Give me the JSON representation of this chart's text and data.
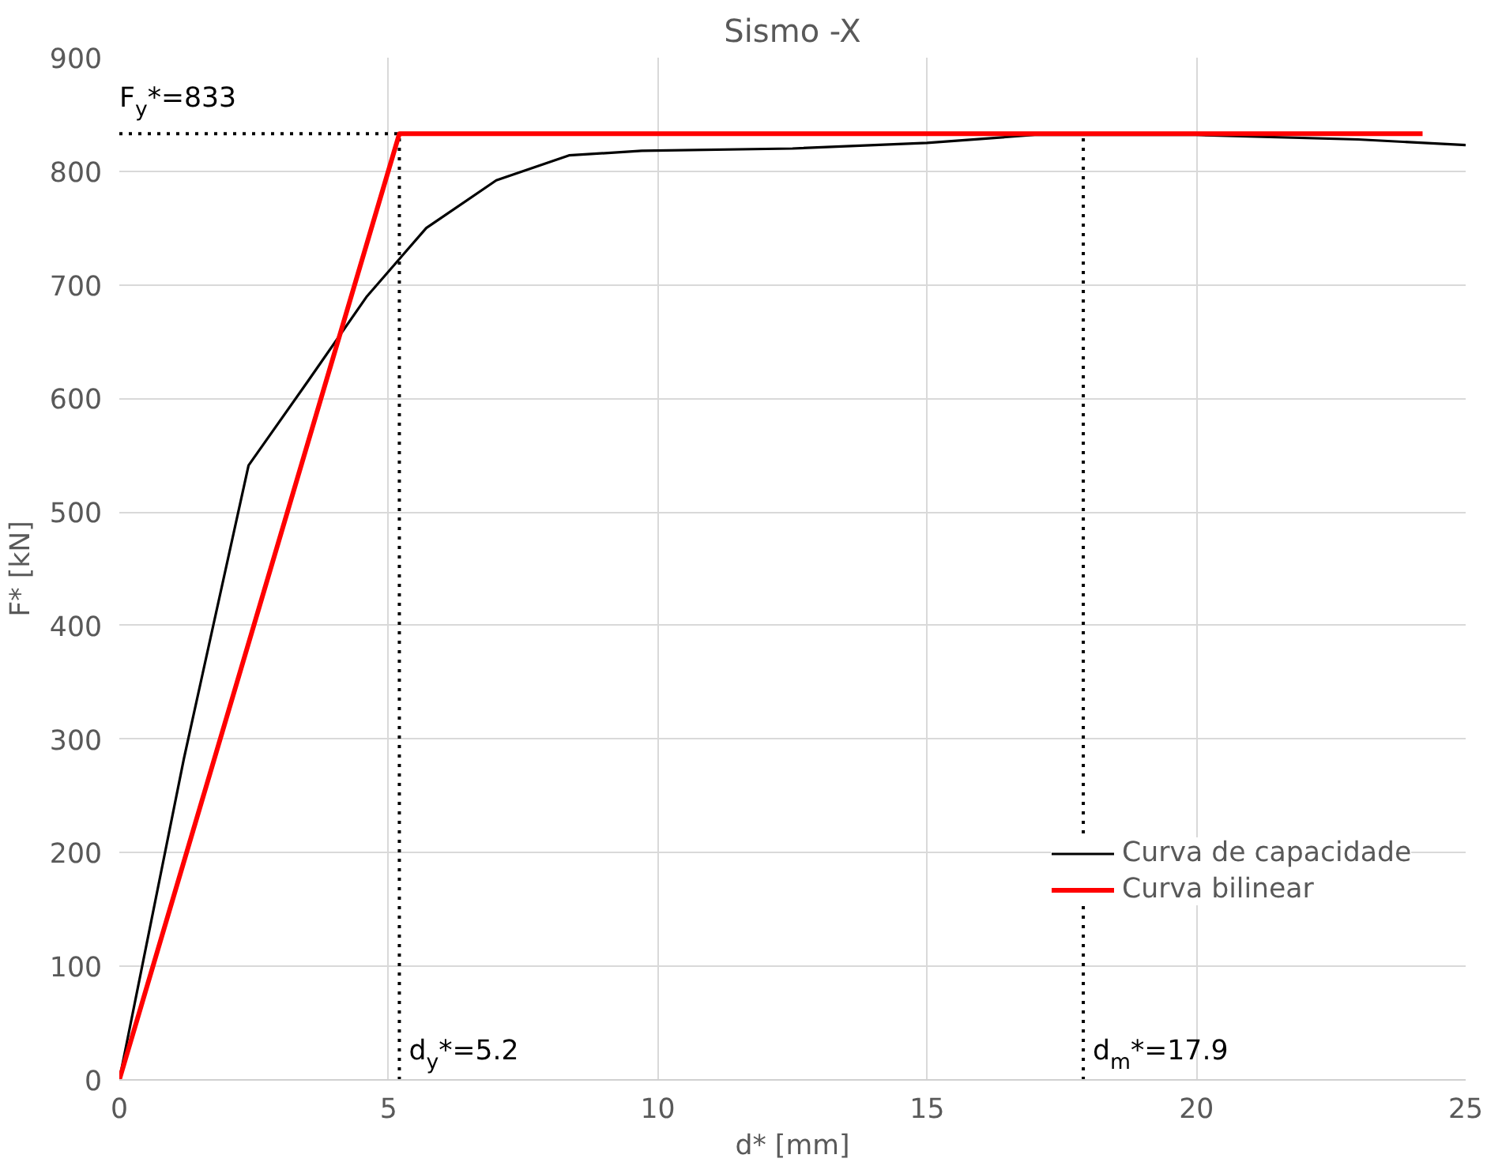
{
  "chart_data": {
    "type": "line",
    "title": "Sismo -X",
    "xlabel": "d* [mm]",
    "ylabel": "F* [kN]",
    "series": [
      {
        "name": "Curva de capacidade",
        "color": "#000000",
        "x": [
          0,
          1.2,
          2.4,
          3.5,
          4.6,
          5.7,
          7.0,
          8.35,
          9.7,
          12.5,
          15,
          17,
          20,
          23,
          25
        ],
        "values": [
          0,
          283,
          541,
          615,
          690,
          750,
          792,
          814,
          818,
          820,
          825,
          832,
          832,
          828,
          823
        ]
      },
      {
        "name": "Curva bilinear",
        "color": "#ff0000",
        "x": [
          0,
          5.2,
          24.2
        ],
        "values": [
          0,
          833,
          833
        ]
      }
    ],
    "xlim": [
      0,
      25
    ],
    "xticks": [
      0,
      5,
      10,
      15,
      20,
      25
    ],
    "ylim": [
      0,
      900
    ],
    "yticks": [
      0,
      100,
      200,
      300,
      400,
      500,
      600,
      700,
      800,
      900
    ],
    "ref_lines": [
      {
        "axis": "y",
        "value": 833,
        "label": "F$_{y}$*=833",
        "color": "#000000",
        "line_style": "dotted"
      },
      {
        "axis": "x",
        "value": 5.2,
        "label": "d$_{y}$*=5.2",
        "color": "#000000",
        "line_style": "dotted"
      },
      {
        "axis": "x",
        "value": 17.9,
        "label": "d$_{m}$*=17.9",
        "color": "#000000",
        "line_style": "dotted"
      }
    ],
    "grid": true,
    "legend": "right",
    "line_style": "solid",
    "marker": "none"
  }
}
